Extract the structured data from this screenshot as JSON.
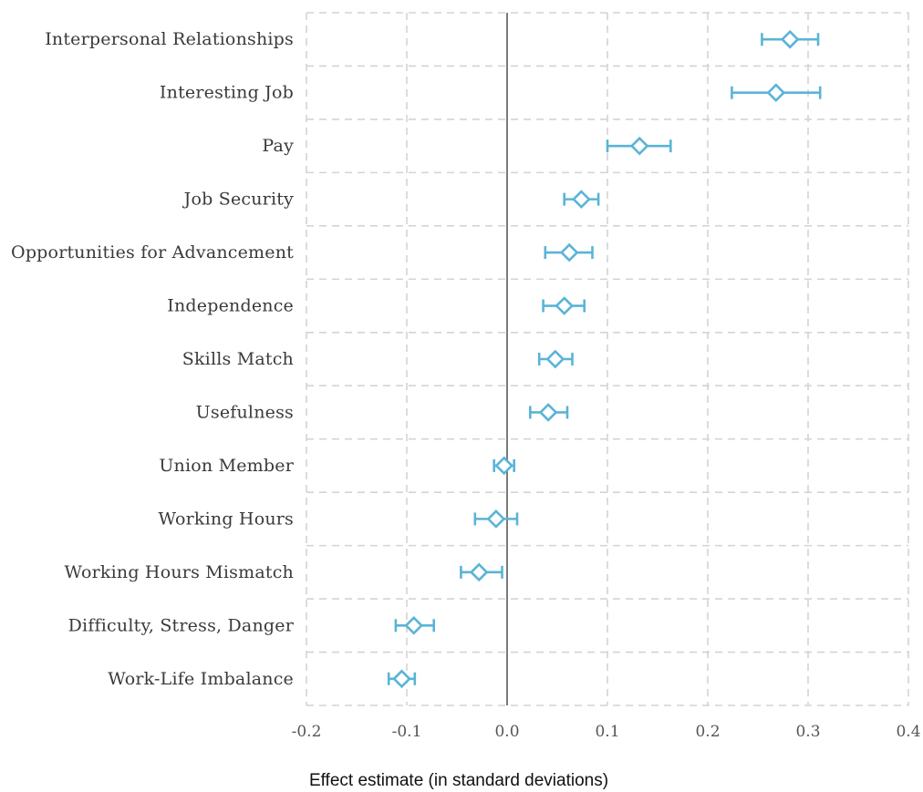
{
  "chart_data": {
    "type": "scatter",
    "variant": "coefficient-plot",
    "title": "",
    "xlabel": "Effect estimate (in standard deviations)",
    "ylabel": "",
    "xlim": [
      -0.2,
      0.4
    ],
    "x_ticks": [
      -0.2,
      -0.1,
      0.0,
      0.1,
      0.2,
      0.3,
      0.4
    ],
    "x_tick_labels": [
      "-0.2",
      "-0.1",
      "0.0",
      "0.1",
      "0.2",
      "0.3",
      "0.4"
    ],
    "grid": true,
    "reference_line_x": 0.0,
    "marker": "hollow-diamond",
    "color": "#5ab4d6",
    "categories": [
      "Interpersonal Relationships",
      "Interesting Job",
      "Pay",
      "Job Security",
      "Opportunities for Advancement",
      "Independence",
      "Skills Match",
      "Usefulness",
      "Union Member",
      "Working Hours",
      "Working Hours Mismatch",
      "Difficulty, Stress, Danger",
      "Work-Life Imbalance"
    ],
    "estimates": [
      0.282,
      0.268,
      0.132,
      0.074,
      0.062,
      0.057,
      0.048,
      0.041,
      -0.003,
      -0.011,
      -0.028,
      -0.093,
      -0.105
    ],
    "ci_lower": [
      0.254,
      0.224,
      0.1,
      0.057,
      0.038,
      0.036,
      0.032,
      0.023,
      -0.013,
      -0.032,
      -0.046,
      -0.111,
      -0.118
    ],
    "ci_upper": [
      0.31,
      0.312,
      0.163,
      0.091,
      0.085,
      0.077,
      0.065,
      0.06,
      0.007,
      0.01,
      -0.005,
      -0.073,
      -0.092
    ]
  }
}
